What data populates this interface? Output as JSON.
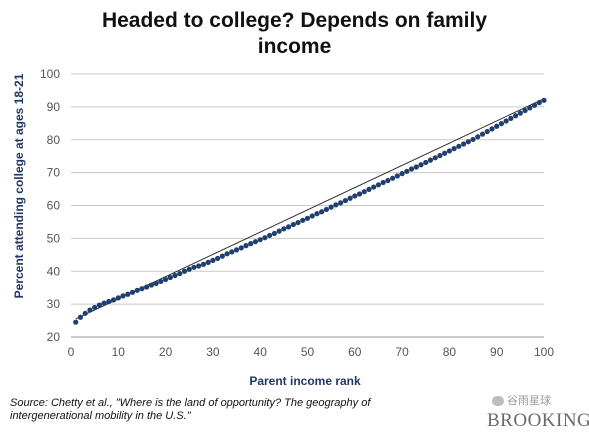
{
  "chart_data": {
    "type": "scatter",
    "title_lines": [
      "Headed to college? Depends on family",
      "income"
    ],
    "xlabel": "Parent income rank",
    "ylabel": "Percent attending college at ages 18-21",
    "xlim": [
      0,
      100
    ],
    "ylim": [
      20,
      100
    ],
    "xticks": [
      0,
      10,
      20,
      30,
      40,
      50,
      60,
      70,
      80,
      90,
      100
    ],
    "yticks": [
      20,
      30,
      40,
      50,
      60,
      70,
      80,
      90,
      100
    ],
    "grid": "horizontal",
    "marker_color": "#1f3f6e",
    "trendline_color": "#333333",
    "trendline": [
      [
        1,
        25.5
      ],
      [
        100,
        92.5
      ]
    ],
    "x": [
      1,
      2,
      3,
      4,
      5,
      6,
      7,
      8,
      9,
      10,
      11,
      12,
      13,
      14,
      15,
      16,
      17,
      18,
      19,
      20,
      21,
      22,
      23,
      24,
      25,
      26,
      27,
      28,
      29,
      30,
      31,
      32,
      33,
      34,
      35,
      36,
      37,
      38,
      39,
      40,
      41,
      42,
      43,
      44,
      45,
      46,
      47,
      48,
      49,
      50,
      51,
      52,
      53,
      54,
      55,
      56,
      57,
      58,
      59,
      60,
      61,
      62,
      63,
      64,
      65,
      66,
      67,
      68,
      69,
      70,
      71,
      72,
      73,
      74,
      75,
      76,
      77,
      78,
      79,
      80,
      81,
      82,
      83,
      84,
      85,
      86,
      87,
      88,
      89,
      90,
      91,
      92,
      93,
      94,
      95,
      96,
      97,
      98,
      99,
      100
    ],
    "y": [
      24.5,
      26.0,
      27.2,
      28.2,
      29.0,
      29.7,
      30.3,
      30.8,
      31.3,
      31.9,
      32.5,
      33.0,
      33.6,
      34.2,
      34.7,
      35.2,
      35.8,
      36.3,
      36.9,
      37.5,
      38.1,
      38.7,
      39.3,
      40.0,
      40.6,
      41.2,
      41.6,
      42.1,
      42.7,
      43.3,
      43.9,
      44.6,
      45.3,
      45.9,
      46.5,
      47.1,
      47.8,
      48.4,
      49.0,
      49.6,
      50.2,
      50.9,
      51.5,
      52.2,
      52.9,
      53.5,
      54.2,
      54.8,
      55.5,
      56.1,
      56.8,
      57.5,
      58.1,
      58.8,
      59.5,
      60.2,
      60.8,
      61.5,
      62.2,
      62.9,
      63.5,
      64.2,
      64.9,
      65.6,
      66.3,
      67.0,
      67.6,
      68.3,
      69.0,
      69.7,
      70.4,
      71.1,
      71.7,
      72.4,
      73.1,
      73.8,
      74.5,
      75.2,
      75.9,
      76.6,
      77.3,
      78.0,
      78.7,
      79.4,
      80.1,
      80.9,
      81.7,
      82.5,
      83.3,
      84.1,
      84.9,
      85.7,
      86.5,
      87.3,
      88.1,
      88.9,
      89.7,
      90.5,
      91.3,
      92.0
    ]
  },
  "source": {
    "line1": "Source: Chetty et al., \"Where is the land of opportunity? The geography of",
    "line2": "intergenerational mobility in the U.S.\""
  },
  "watermark": {
    "icon": "wechat-icon",
    "text": "谷雨星球"
  },
  "brand": "BROOKINGS"
}
